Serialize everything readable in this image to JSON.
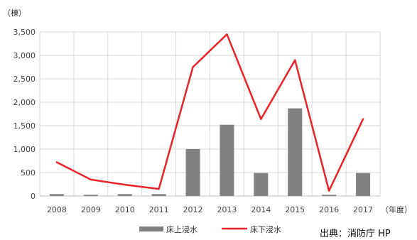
{
  "chart_data": {
    "type": "bar",
    "y_unit": "（棟）",
    "x_unit": "（年度）",
    "categories": [
      "2008",
      "2009",
      "2010",
      "2011",
      "2012",
      "2013",
      "2014",
      "2015",
      "2016",
      "2017"
    ],
    "ylim": [
      0,
      3500
    ],
    "yticks": [
      0,
      500,
      1000,
      1500,
      2000,
      2500,
      3000,
      3500
    ],
    "ytick_labels": [
      "0",
      "500",
      "1,000",
      "1,500",
      "2,000",
      "2,500",
      "3,000",
      "3,500"
    ],
    "grid": true,
    "legend_position": "bottom",
    "series": [
      {
        "name": "床上浸水",
        "type": "bar",
        "color": "#808080",
        "values": [
          40,
          25,
          40,
          40,
          1000,
          1520,
          490,
          1870,
          25,
          490
        ]
      },
      {
        "name": "床下浸水",
        "type": "line",
        "color": "#e8232a",
        "values": [
          720,
          350,
          240,
          150,
          2750,
          3450,
          1640,
          2900,
          110,
          1640
        ]
      }
    ]
  },
  "source_label": "出典：消防庁 HP"
}
